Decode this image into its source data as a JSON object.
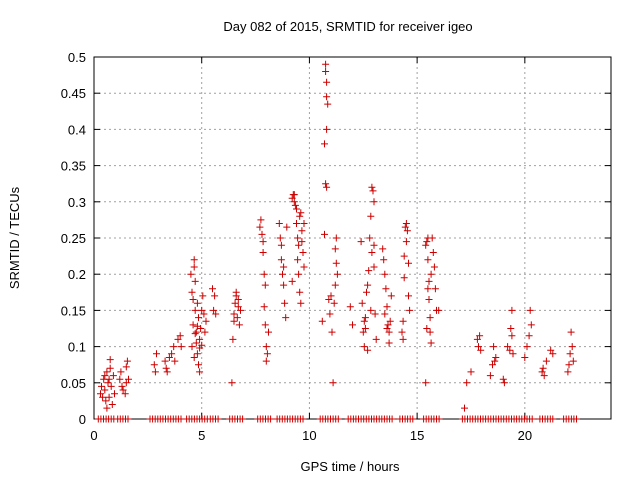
{
  "chart_data": {
    "type": "scatter",
    "title": "Day 082 of 2015, SRMTID for receiver igeo",
    "xlabel": "GPS time / hours",
    "ylabel": "SRMTID / TECUs",
    "xlim": [
      0,
      24
    ],
    "ylim": [
      0,
      0.5
    ],
    "xticks": [
      0,
      5,
      10,
      15,
      20
    ],
    "yticks": [
      0,
      0.05,
      0.1,
      0.15,
      0.2,
      0.25,
      0.3,
      0.35,
      0.4,
      0.45,
      0.5
    ],
    "xtick_labels": [
      "0",
      "5",
      "10",
      "15",
      "20"
    ],
    "ytick_labels": [
      "0",
      "0.05",
      "0.1",
      "0.15",
      "0.2",
      "0.25",
      "0.3",
      "0.35",
      "0.4",
      "0.45",
      "0.5"
    ],
    "grid": true,
    "marker": "+",
    "color": "#cc0000",
    "series": [
      {
        "name": "SRMTID",
        "points": [
          [
            0.3,
            0.035
          ],
          [
            0.35,
            0.045
          ],
          [
            0.4,
            0.03
          ],
          [
            0.45,
            0.055
          ],
          [
            0.5,
            0.04
          ],
          [
            0.55,
            0.025
          ],
          [
            0.6,
            0.065
          ],
          [
            0.65,
            0.05
          ],
          [
            0.7,
            0.03
          ],
          [
            0.75,
            0.07
          ],
          [
            0.75,
            0.082
          ],
          [
            0.8,
            0.045
          ],
          [
            0.85,
            0.02
          ],
          [
            0.9,
            0.06
          ],
          [
            0.95,
            0.035
          ],
          [
            0.5,
            0.06
          ],
          [
            0.6,
            0.015
          ],
          [
            0.7,
            0.055
          ],
          [
            1.2,
            0.055
          ],
          [
            1.25,
            0.065
          ],
          [
            1.3,
            0.045
          ],
          [
            1.35,
            0.04
          ],
          [
            1.5,
            0.05
          ],
          [
            1.5,
            0.072
          ],
          [
            1.55,
            0.08
          ],
          [
            1.6,
            0.055
          ],
          [
            1.45,
            0.035
          ],
          [
            2.8,
            0.075
          ],
          [
            2.85,
            0.065
          ],
          [
            2.9,
            0.09
          ],
          [
            3.3,
            0.08
          ],
          [
            3.35,
            0.07
          ],
          [
            3.4,
            0.065
          ],
          [
            3.5,
            0.085
          ],
          [
            3.6,
            0.09
          ],
          [
            3.7,
            0.1
          ],
          [
            3.75,
            0.08
          ],
          [
            3.9,
            0.11
          ],
          [
            4.0,
            0.115
          ],
          [
            4.05,
            0.1
          ],
          [
            4.5,
            0.2
          ],
          [
            4.55,
            0.175
          ],
          [
            4.6,
            0.165
          ],
          [
            4.6,
            0.13
          ],
          [
            4.65,
            0.22
          ],
          [
            4.65,
            0.21
          ],
          [
            4.7,
            0.19
          ],
          [
            4.7,
            0.15
          ],
          [
            4.75,
            0.12
          ],
          [
            4.75,
            0.105
          ],
          [
            4.8,
            0.16
          ],
          [
            4.8,
            0.09
          ],
          [
            4.85,
            0.075
          ],
          [
            4.85,
            0.14
          ],
          [
            4.9,
            0.11
          ],
          [
            4.9,
            0.065
          ],
          [
            4.95,
            0.125
          ],
          [
            5.0,
            0.15
          ],
          [
            5.05,
            0.17
          ],
          [
            5.1,
            0.145
          ],
          [
            5.15,
            0.12
          ],
          [
            5.2,
            0.135
          ],
          [
            4.55,
            0.1
          ],
          [
            4.65,
            0.085
          ],
          [
            4.7,
            0.118
          ],
          [
            4.8,
            0.128
          ],
          [
            4.9,
            0.098
          ],
          [
            5.0,
            0.102
          ],
          [
            5.5,
            0.18
          ],
          [
            5.55,
            0.15
          ],
          [
            5.6,
            0.17
          ],
          [
            5.65,
            0.145
          ],
          [
            6.4,
            0.05
          ],
          [
            6.45,
            0.11
          ],
          [
            6.5,
            0.145
          ],
          [
            6.55,
            0.16
          ],
          [
            6.6,
            0.175
          ],
          [
            6.6,
            0.17
          ],
          [
            6.65,
            0.14
          ],
          [
            6.7,
            0.155
          ],
          [
            6.75,
            0.13
          ],
          [
            6.8,
            0.15
          ],
          [
            6.5,
            0.135
          ],
          [
            6.7,
            0.165
          ],
          [
            7.7,
            0.265
          ],
          [
            7.75,
            0.275
          ],
          [
            7.8,
            0.255
          ],
          [
            7.85,
            0.245
          ],
          [
            7.9,
            0.2
          ],
          [
            7.9,
            0.155
          ],
          [
            7.95,
            0.13
          ],
          [
            8.0,
            0.1
          ],
          [
            8.0,
            0.08
          ],
          [
            8.05,
            0.09
          ],
          [
            8.1,
            0.12
          ],
          [
            7.85,
            0.23
          ],
          [
            7.95,
            0.185
          ],
          [
            8.6,
            0.27
          ],
          [
            8.65,
            0.25
          ],
          [
            8.7,
            0.22
          ],
          [
            8.75,
            0.2
          ],
          [
            8.8,
            0.185
          ],
          [
            8.85,
            0.16
          ],
          [
            8.9,
            0.14
          ],
          [
            8.95,
            0.265
          ],
          [
            8.7,
            0.24
          ],
          [
            8.8,
            0.21
          ],
          [
            9.2,
            0.305
          ],
          [
            9.25,
            0.31
          ],
          [
            9.3,
            0.3
          ],
          [
            9.35,
            0.295
          ],
          [
            9.4,
            0.27
          ],
          [
            9.45,
            0.25
          ],
          [
            9.5,
            0.24
          ],
          [
            9.5,
            0.2
          ],
          [
            9.55,
            0.175
          ],
          [
            9.6,
            0.16
          ],
          [
            9.6,
            0.285
          ],
          [
            9.65,
            0.26
          ],
          [
            9.7,
            0.23
          ],
          [
            9.75,
            0.27
          ],
          [
            9.75,
            0.21
          ],
          [
            9.3,
            0.31
          ],
          [
            9.4,
            0.29
          ],
          [
            9.45,
            0.22
          ],
          [
            9.55,
            0.28
          ],
          [
            9.65,
            0.245
          ],
          [
            9.2,
            0.19
          ],
          [
            10.6,
            0.135
          ],
          [
            10.7,
            0.255
          ],
          [
            10.75,
            0.49
          ],
          [
            10.75,
            0.48
          ],
          [
            10.8,
            0.465
          ],
          [
            10.8,
            0.445
          ],
          [
            10.85,
            0.435
          ],
          [
            10.8,
            0.4
          ],
          [
            10.7,
            0.38
          ],
          [
            10.75,
            0.325
          ],
          [
            10.8,
            0.32
          ],
          [
            10.9,
            0.165
          ],
          [
            10.95,
            0.145
          ],
          [
            11.0,
            0.17
          ],
          [
            11.05,
            0.12
          ],
          [
            11.1,
            0.05
          ],
          [
            11.15,
            0.16
          ],
          [
            11.2,
            0.235
          ],
          [
            11.25,
            0.215
          ],
          [
            11.3,
            0.2
          ],
          [
            11.2,
            0.185
          ],
          [
            11.25,
            0.25
          ],
          [
            11.9,
            0.155
          ],
          [
            12.0,
            0.13
          ],
          [
            12.4,
            0.245
          ],
          [
            12.45,
            0.16
          ],
          [
            12.5,
            0.12
          ],
          [
            12.55,
            0.1
          ],
          [
            12.6,
            0.14
          ],
          [
            12.65,
            0.175
          ],
          [
            12.7,
            0.095
          ],
          [
            12.75,
            0.205
          ],
          [
            12.8,
            0.25
          ],
          [
            12.85,
            0.28
          ],
          [
            12.9,
            0.32
          ],
          [
            12.95,
            0.315
          ],
          [
            13.0,
            0.3
          ],
          [
            12.9,
            0.23
          ],
          [
            13.0,
            0.21
          ],
          [
            13.05,
            0.145
          ],
          [
            13.1,
            0.11
          ],
          [
            12.6,
            0.125
          ],
          [
            12.7,
            0.185
          ],
          [
            12.85,
            0.15
          ],
          [
            13.0,
            0.24
          ],
          [
            12.55,
            0.135
          ],
          [
            13.4,
            0.235
          ],
          [
            13.45,
            0.22
          ],
          [
            13.5,
            0.2
          ],
          [
            13.55,
            0.18
          ],
          [
            13.6,
            0.155
          ],
          [
            13.65,
            0.13
          ],
          [
            13.7,
            0.12
          ],
          [
            13.7,
            0.105
          ],
          [
            13.75,
            0.135
          ],
          [
            13.8,
            0.17
          ],
          [
            13.5,
            0.145
          ],
          [
            13.6,
            0.125
          ],
          [
            14.3,
            0.12
          ],
          [
            14.35,
            0.11
          ],
          [
            14.4,
            0.195
          ],
          [
            14.45,
            0.265
          ],
          [
            14.5,
            0.27
          ],
          [
            14.5,
            0.245
          ],
          [
            14.55,
            0.26
          ],
          [
            14.6,
            0.215
          ],
          [
            14.6,
            0.17
          ],
          [
            14.65,
            0.15
          ],
          [
            14.4,
            0.225
          ],
          [
            14.35,
            0.135
          ],
          [
            15.4,
            0.24
          ],
          [
            15.45,
            0.245
          ],
          [
            15.5,
            0.25
          ],
          [
            15.5,
            0.22
          ],
          [
            15.55,
            0.19
          ],
          [
            15.55,
            0.165
          ],
          [
            15.6,
            0.14
          ],
          [
            15.6,
            0.12
          ],
          [
            15.65,
            0.105
          ],
          [
            15.4,
            0.05
          ],
          [
            15.7,
            0.25
          ],
          [
            15.75,
            0.23
          ],
          [
            15.8,
            0.21
          ],
          [
            15.85,
            0.18
          ],
          [
            15.9,
            0.15
          ],
          [
            16.0,
            0.15
          ],
          [
            15.5,
            0.18
          ],
          [
            15.45,
            0.125
          ],
          [
            15.65,
            0.2
          ],
          [
            17.2,
            0.015
          ],
          [
            17.3,
            0.05
          ],
          [
            17.5,
            0.065
          ],
          [
            17.8,
            0.11
          ],
          [
            17.85,
            0.1
          ],
          [
            17.9,
            0.115
          ],
          [
            17.95,
            0.095
          ],
          [
            18.4,
            0.06
          ],
          [
            18.5,
            0.075
          ],
          [
            18.55,
            0.1
          ],
          [
            18.6,
            0.08
          ],
          [
            18.65,
            0.085
          ],
          [
            19.0,
            0.055
          ],
          [
            19.05,
            0.05
          ],
          [
            19.2,
            0.1
          ],
          [
            19.3,
            0.095
          ],
          [
            19.35,
            0.125
          ],
          [
            19.4,
            0.15
          ],
          [
            19.4,
            0.115
          ],
          [
            19.45,
            0.09
          ],
          [
            20.0,
            0.085
          ],
          [
            20.1,
            0.1
          ],
          [
            20.2,
            0.115
          ],
          [
            20.25,
            0.15
          ],
          [
            20.3,
            0.13
          ],
          [
            20.8,
            0.065
          ],
          [
            20.85,
            0.07
          ],
          [
            20.9,
            0.06
          ],
          [
            21.0,
            0.08
          ],
          [
            21.2,
            0.095
          ],
          [
            21.3,
            0.09
          ],
          [
            22.0,
            0.065
          ],
          [
            22.05,
            0.075
          ],
          [
            22.1,
            0.09
          ],
          [
            22.15,
            0.12
          ],
          [
            22.2,
            0.1
          ],
          [
            22.25,
            0.08
          ]
        ]
      }
    ],
    "zero_baseline": {
      "note": "dense markers at zero",
      "segments": [
        [
          0.2,
          1.0
        ],
        [
          1.1,
          1.6
        ],
        [
          2.6,
          4.1
        ],
        [
          4.3,
          5.3
        ],
        [
          5.4,
          5.8
        ],
        [
          6.3,
          6.9
        ],
        [
          7.6,
          8.2
        ],
        [
          8.5,
          9.8
        ],
        [
          10.5,
          11.4
        ],
        [
          11.8,
          13.9
        ],
        [
          14.2,
          14.8
        ],
        [
          15.3,
          16.1
        ],
        [
          17.1,
          20.4
        ],
        [
          20.7,
          21.4
        ],
        [
          21.8,
          22.4
        ]
      ],
      "step": 0.12
    }
  }
}
